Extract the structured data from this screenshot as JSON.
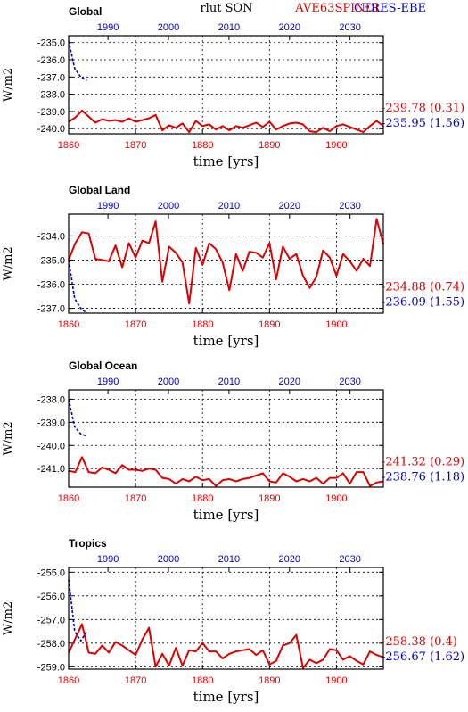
{
  "header": {
    "variable": "rlut SON",
    "model": "AVE63SPINDL",
    "obs": "CERES-EBE"
  },
  "colors": {
    "model": "#dd0000",
    "obs": "#0000cc",
    "axis": "#000000",
    "grid": "#000000"
  },
  "chart_data": [
    {
      "type": "line",
      "title": "Global",
      "xlabel": "time [yrs]",
      "ylabel": "W/m2",
      "grid": true,
      "xlim_bottom": [
        1860,
        1907
      ],
      "xlim_top": [
        1983.5,
        2035.5
      ],
      "ylim": [
        -240.3,
        -234.6
      ],
      "yticks": [
        -240.0,
        -239.0,
        -238.0,
        -237.0,
        -236.0,
        -235.0
      ],
      "ytick_labels": [
        "-240.0",
        "-239.0",
        "-238.0",
        "-237.0",
        "-236.0",
        "-235.0"
      ],
      "xticks_bottom": [
        1860,
        1870,
        1880,
        1890,
        1900
      ],
      "xticks_top": [
        1990,
        2000,
        2010,
        2020,
        2030
      ],
      "stat_model": "-239.78 (0.31)",
      "stat_obs": "-235.95 (1.56)",
      "series": [
        {
          "name": "AVE63SPINDL",
          "axis": "bottom",
          "x": [
            1860,
            1861,
            1862,
            1863,
            1864,
            1865,
            1866,
            1867,
            1868,
            1869,
            1870,
            1871,
            1872,
            1873,
            1874,
            1875,
            1876,
            1877,
            1878,
            1879,
            1880,
            1881,
            1882,
            1883,
            1884,
            1885,
            1886,
            1887,
            1888,
            1889,
            1890,
            1891,
            1892,
            1893,
            1894,
            1895,
            1896,
            1897,
            1898,
            1899,
            1900,
            1901,
            1902,
            1903,
            1904,
            1905,
            1906,
            1907
          ],
          "values": [
            -239.6,
            -239.35,
            -238.95,
            -239.3,
            -239.65,
            -239.45,
            -239.55,
            -239.5,
            -239.6,
            -239.4,
            -239.6,
            -239.5,
            -239.4,
            -239.2,
            -240.1,
            -239.8,
            -239.95,
            -239.7,
            -240.2,
            -239.55,
            -239.85,
            -239.75,
            -240.05,
            -239.85,
            -240.1,
            -239.85,
            -239.95,
            -239.8,
            -239.65,
            -239.9,
            -239.6,
            -240.05,
            -239.85,
            -239.7,
            -239.65,
            -239.75,
            -240.15,
            -240.2,
            -239.95,
            -240.15,
            -239.85,
            -239.75,
            -239.9,
            -240.05,
            -240.2,
            -239.85,
            -239.55,
            -239.85
          ]
        },
        {
          "name": "CERES-EBE",
          "axis": "top",
          "x": [
            1983.5,
            1984.5,
            1985.5,
            1986.5
          ],
          "values": [
            -234.9,
            -236.5,
            -237.0,
            -237.2
          ]
        }
      ]
    },
    {
      "type": "line",
      "title": "Global Land",
      "xlabel": "time [yrs]",
      "ylabel": "W/m2",
      "grid": true,
      "xlim_bottom": [
        1860,
        1907
      ],
      "xlim_top": [
        1983.5,
        2035.5
      ],
      "ylim": [
        -237.2,
        -233.1
      ],
      "yticks": [
        -237.0,
        -236.0,
        -235.0,
        -234.0
      ],
      "ytick_labels": [
        "-237.0",
        "-236.0",
        "-235.0",
        "-234.0"
      ],
      "xticks_bottom": [
        1860,
        1870,
        1880,
        1890,
        1900
      ],
      "xticks_top": [
        1990,
        2000,
        2010,
        2020,
        2030
      ],
      "stat_model": "-234.88 (0.74)",
      "stat_obs": "-236.09 (1.55)",
      "series": [
        {
          "name": "AVE63SPINDL",
          "axis": "bottom",
          "x": [
            1860,
            1861,
            1862,
            1863,
            1864,
            1865,
            1866,
            1867,
            1868,
            1869,
            1870,
            1871,
            1872,
            1873,
            1874,
            1875,
            1876,
            1877,
            1878,
            1879,
            1880,
            1881,
            1882,
            1883,
            1884,
            1885,
            1886,
            1887,
            1888,
            1889,
            1890,
            1891,
            1892,
            1893,
            1894,
            1895,
            1896,
            1897,
            1898,
            1899,
            1900,
            1901,
            1902,
            1903,
            1904,
            1905,
            1906,
            1907
          ],
          "values": [
            -235.0,
            -234.3,
            -233.85,
            -233.9,
            -234.95,
            -235.0,
            -235.05,
            -234.4,
            -235.3,
            -234.3,
            -234.9,
            -234.2,
            -234.3,
            -233.4,
            -235.9,
            -234.45,
            -234.7,
            -235.1,
            -236.8,
            -234.5,
            -235.2,
            -234.3,
            -234.55,
            -235.1,
            -236.25,
            -234.75,
            -235.45,
            -234.65,
            -234.7,
            -234.9,
            -234.3,
            -235.8,
            -234.45,
            -234.95,
            -234.75,
            -235.65,
            -236.15,
            -235.7,
            -234.6,
            -234.9,
            -235.65,
            -234.75,
            -235.05,
            -235.45,
            -234.95,
            -235.25,
            -233.3,
            -234.35
          ]
        },
        {
          "name": "CERES-EBE",
          "axis": "top",
          "x": [
            1983.5,
            1984.5,
            1985.5,
            1986.5
          ],
          "values": [
            -235.0,
            -236.6,
            -237.0,
            -237.2
          ]
        }
      ]
    },
    {
      "type": "line",
      "title": "Global Ocean",
      "xlabel": "time [yrs]",
      "ylabel": "W/m2",
      "grid": true,
      "xlim_bottom": [
        1860,
        1907
      ],
      "xlim_top": [
        1983.5,
        2035.5
      ],
      "ylim": [
        -241.8,
        -237.6
      ],
      "yticks": [
        -241.0,
        -240.0,
        -239.0,
        -238.0
      ],
      "ytick_labels": [
        "-241.0",
        "-240.0",
        "-239.0",
        "-238.0"
      ],
      "xticks_bottom": [
        1860,
        1870,
        1880,
        1890,
        1900
      ],
      "xticks_top": [
        1990,
        2000,
        2010,
        2020,
        2030
      ],
      "stat_model": "-241.32 (0.29)",
      "stat_obs": "-238.76 (1.18)",
      "series": [
        {
          "name": "AVE63SPINDL",
          "axis": "bottom",
          "x": [
            1860,
            1861,
            1862,
            1863,
            1864,
            1865,
            1866,
            1867,
            1868,
            1869,
            1870,
            1871,
            1872,
            1873,
            1874,
            1875,
            1876,
            1877,
            1878,
            1879,
            1880,
            1881,
            1882,
            1883,
            1884,
            1885,
            1886,
            1887,
            1888,
            1889,
            1890,
            1891,
            1892,
            1893,
            1894,
            1895,
            1896,
            1897,
            1898,
            1899,
            1900,
            1901,
            1902,
            1903,
            1904,
            1905,
            1906,
            1907
          ],
          "values": [
            -241.1,
            -241.15,
            -240.5,
            -241.15,
            -241.2,
            -240.95,
            -241.05,
            -241.2,
            -240.85,
            -241.05,
            -241.05,
            -241.1,
            -241.0,
            -241.05,
            -241.4,
            -241.45,
            -241.65,
            -241.45,
            -241.55,
            -241.35,
            -241.5,
            -241.45,
            -241.75,
            -241.5,
            -241.45,
            -241.55,
            -241.45,
            -241.4,
            -241.3,
            -241.2,
            -241.55,
            -241.6,
            -241.2,
            -241.35,
            -241.55,
            -241.45,
            -241.55,
            -241.4,
            -241.65,
            -241.4,
            -241.4,
            -241.2,
            -241.65,
            -241.15,
            -241.15,
            -241.75,
            -241.6,
            -241.55
          ]
        },
        {
          "name": "CERES-EBE",
          "axis": "top",
          "x": [
            1983.5,
            1984.5,
            1985.5,
            1986.5
          ],
          "values": [
            -238.0,
            -239.2,
            -239.5,
            -239.6
          ]
        }
      ]
    },
    {
      "type": "line",
      "title": "Tropics",
      "xlabel": "time [yrs]",
      "ylabel": "W/m2",
      "grid": true,
      "xlim_bottom": [
        1860,
        1907
      ],
      "xlim_top": [
        1983.5,
        2035.5
      ],
      "ylim": [
        -259.1,
        -254.8
      ],
      "yticks": [
        -259.0,
        -258.0,
        -257.0,
        -256.0,
        -255.0
      ],
      "ytick_labels": [
        "-259.0",
        "-258.0",
        "-257.0",
        "-256.0",
        "-255.0"
      ],
      "xticks_bottom": [
        1860,
        1870,
        1880,
        1890,
        1900
      ],
      "xticks_top": [
        1990,
        2000,
        2010,
        2020,
        2030
      ],
      "stat_model": "-258.38 (0.4)",
      "stat_obs": "-256.67 (1.62)",
      "series": [
        {
          "name": "AVE63SPINDL",
          "axis": "bottom",
          "x": [
            1860,
            1861,
            1862,
            1863,
            1864,
            1865,
            1866,
            1867,
            1868,
            1869,
            1870,
            1871,
            1872,
            1873,
            1874,
            1875,
            1876,
            1877,
            1878,
            1879,
            1880,
            1881,
            1882,
            1883,
            1884,
            1885,
            1886,
            1887,
            1888,
            1889,
            1890,
            1891,
            1892,
            1893,
            1894,
            1895,
            1896,
            1897,
            1898,
            1899,
            1900,
            1901,
            1902,
            1903,
            1904,
            1905,
            1906,
            1907
          ],
          "values": [
            -258.4,
            -257.8,
            -257.2,
            -258.4,
            -258.45,
            -258.1,
            -258.4,
            -257.95,
            -258.1,
            -258.3,
            -258.5,
            -257.85,
            -257.35,
            -259.0,
            -258.45,
            -258.95,
            -258.2,
            -258.95,
            -258.3,
            -258.35,
            -258.0,
            -258.35,
            -258.35,
            -258.65,
            -258.45,
            -258.35,
            -258.3,
            -258.25,
            -258.5,
            -258.3,
            -258.9,
            -258.75,
            -258.1,
            -258.0,
            -257.65,
            -259.05,
            -258.7,
            -258.85,
            -258.7,
            -258.25,
            -258.3,
            -258.7,
            -258.55,
            -258.75,
            -258.9,
            -258.35,
            -258.5,
            -258.6
          ]
        },
        {
          "name": "CERES-EBE",
          "axis": "top",
          "x": [
            1983.5,
            1984.5,
            1985.5,
            1986.5
          ],
          "values": [
            -255.3,
            -257.5,
            -257.9,
            -257.5
          ]
        }
      ]
    }
  ]
}
